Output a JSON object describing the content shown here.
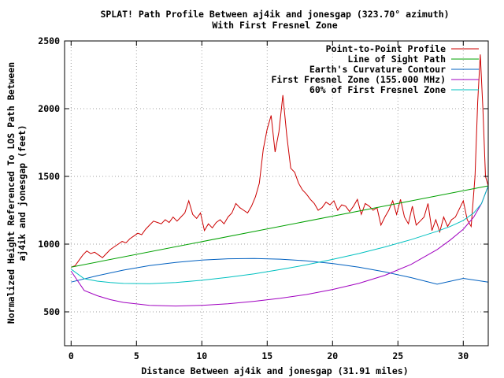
{
  "chart_data": {
    "type": "line",
    "title": "SPLAT! Path Profile Between aj4ik and jonesgap (323.70° azimuth)",
    "subtitle": "With First Fresnel Zone",
    "xlabel": "Distance Between aj4ik and jonesgap (31.91 miles)",
    "ylabel_line1": "Normalized Height Referenced To LOS Path Between",
    "ylabel_line2": "aj4ik and jonesgap (feet)",
    "xlim": [
      -0.5,
      31.91
    ],
    "ylim": [
      250,
      2500
    ],
    "xticks": [
      0,
      5,
      10,
      15,
      20,
      25,
      30
    ],
    "yticks": [
      500,
      1000,
      1500,
      2000,
      2500
    ],
    "grid": true,
    "legend_position": "top-right",
    "series": [
      {
        "name": "Point-to-Point Profile",
        "color": "#cc0000",
        "x": [
          0,
          0.3,
          0.6,
          0.9,
          1.2,
          1.5,
          1.8,
          2.1,
          2.4,
          2.7,
          3.0,
          3.3,
          3.6,
          3.9,
          4.2,
          4.5,
          4.8,
          5.1,
          5.4,
          5.7,
          6.0,
          6.3,
          6.6,
          6.9,
          7.2,
          7.5,
          7.8,
          8.1,
          8.4,
          8.7,
          9.0,
          9.3,
          9.6,
          9.9,
          10.2,
          10.5,
          10.8,
          11.1,
          11.4,
          11.7,
          12.0,
          12.3,
          12.6,
          12.9,
          13.2,
          13.5,
          13.8,
          14.1,
          14.4,
          14.7,
          15.0,
          15.3,
          15.6,
          15.9,
          16.2,
          16.5,
          16.8,
          17.1,
          17.4,
          17.7,
          18.0,
          18.3,
          18.6,
          18.9,
          19.2,
          19.5,
          19.8,
          20.1,
          20.4,
          20.7,
          21.0,
          21.3,
          21.6,
          21.9,
          22.2,
          22.5,
          22.8,
          23.1,
          23.4,
          23.7,
          24.0,
          24.3,
          24.6,
          24.9,
          25.2,
          25.5,
          25.8,
          26.1,
          26.4,
          26.7,
          27.0,
          27.3,
          27.6,
          27.9,
          28.2,
          28.5,
          28.8,
          29.1,
          29.4,
          29.7,
          30.0,
          30.3,
          30.6,
          30.9,
          31.1,
          31.3,
          31.5,
          31.7,
          31.91
        ],
        "y": [
          830,
          840,
          880,
          920,
          950,
          930,
          940,
          920,
          900,
          930,
          960,
          980,
          1000,
          1020,
          1010,
          1040,
          1060,
          1080,
          1070,
          1110,
          1140,
          1170,
          1160,
          1150,
          1180,
          1160,
          1200,
          1170,
          1200,
          1230,
          1320,
          1220,
          1190,
          1230,
          1100,
          1150,
          1120,
          1160,
          1180,
          1150,
          1200,
          1230,
          1300,
          1270,
          1250,
          1230,
          1280,
          1350,
          1450,
          1700,
          1850,
          1950,
          1680,
          1830,
          2100,
          1800,
          1560,
          1530,
          1450,
          1400,
          1370,
          1330,
          1300,
          1250,
          1270,
          1310,
          1290,
          1320,
          1250,
          1290,
          1280,
          1240,
          1280,
          1330,
          1220,
          1300,
          1280,
          1250,
          1270,
          1140,
          1200,
          1250,
          1320,
          1220,
          1330,
          1200,
          1150,
          1280,
          1140,
          1170,
          1200,
          1300,
          1100,
          1180,
          1090,
          1200,
          1130,
          1180,
          1200,
          1260,
          1320,
          1180,
          1130,
          1500,
          2050,
          2400,
          2000,
          1500,
          1430
        ]
      },
      {
        "name": "Line of Sight Path",
        "color": "#00a000",
        "x": [
          0,
          31.91
        ],
        "y": [
          830,
          1430
        ]
      },
      {
        "name": "Earth's Curvature Contour",
        "color": "#0060c0",
        "x": [
          0,
          2,
          4,
          6,
          8,
          10,
          12,
          14,
          16,
          18,
          20,
          22,
          24,
          26,
          28,
          30,
          31.91
        ],
        "y": [
          720,
          767,
          808,
          841,
          865,
          882,
          892,
          894,
          889,
          877,
          857,
          830,
          795,
          753,
          704,
          747,
          720
        ]
      },
      {
        "name": "First Fresnel Zone (155.000 MHz)",
        "color": "#a000c0",
        "x": [
          0,
          1,
          2,
          3,
          4,
          6,
          8,
          10,
          12,
          14,
          16,
          18,
          20,
          22,
          24,
          26,
          28,
          29,
          30,
          30.8,
          31.4,
          31.91
        ],
        "y": [
          800,
          658,
          619,
          590,
          570,
          548,
          543,
          548,
          560,
          578,
          600,
          628,
          665,
          710,
          770,
          850,
          960,
          1030,
          1110,
          1200,
          1300,
          1430
        ]
      },
      {
        "name": "60% of First Fresnel Zone",
        "color": "#00c0c0",
        "x": [
          0,
          1,
          2,
          3,
          4,
          6,
          8,
          10,
          12,
          14,
          16,
          18,
          20,
          22,
          24,
          26,
          28,
          29,
          30,
          30.8,
          31.4,
          31.91
        ],
        "y": [
          815,
          745,
          727,
          716,
          710,
          708,
          716,
          733,
          755,
          781,
          812,
          847,
          887,
          930,
          979,
          1033,
          1095,
          1130,
          1175,
          1230,
          1300,
          1430
        ]
      }
    ]
  }
}
